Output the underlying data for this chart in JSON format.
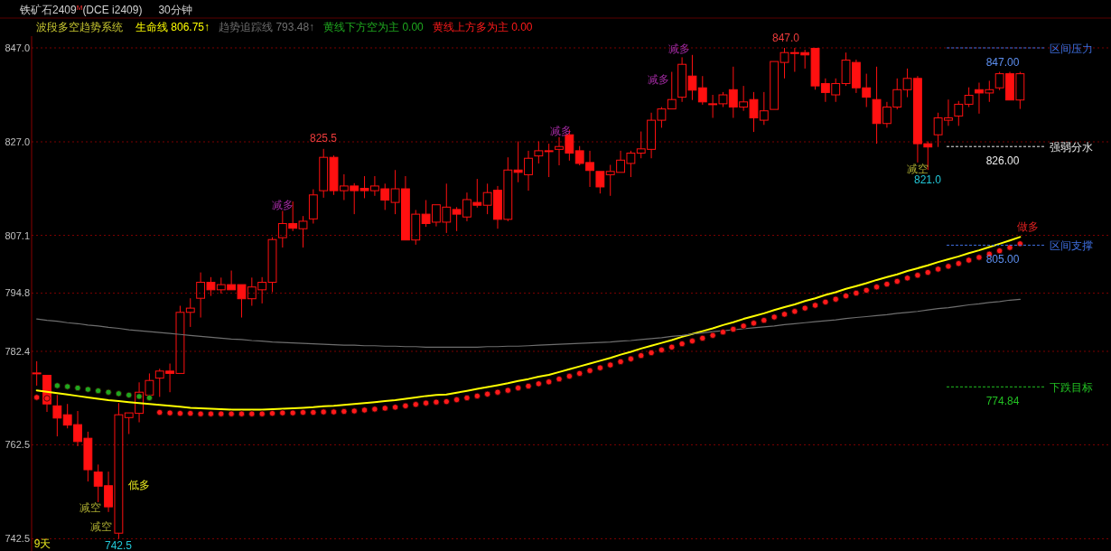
{
  "chart_data": {
    "type": "candlestick",
    "title": "铁矿石2409$^{M}$(DCE i2409)",
    "subtitle": "30分钟",
    "legend_title": "波段多空趋势系统",
    "legend": "top",
    "grid": "y",
    "color": "#ff1010",
    "ylim": [
      739.9,
      849.5
    ],
    "yticks": [
      {
        "value": 847.0,
        "label": "847.0"
      },
      {
        "value": 827.0,
        "label": "827.0"
      },
      {
        "value": 807.1,
        "label": "807.1"
      },
      {
        "value": 794.8,
        "label": "794.8"
      },
      {
        "value": 782.4,
        "label": "782.4"
      },
      {
        "value": 762.5,
        "label": "762.5"
      },
      {
        "value": 742.5,
        "label": "742.5"
      }
    ],
    "categories": [
      null,
      null,
      null,
      null,
      null,
      null,
      null,
      null,
      null,
      null,
      null,
      null,
      null,
      null,
      null,
      null,
      null,
      null,
      null,
      null,
      null,
      null,
      null,
      null,
      null,
      null,
      null,
      null,
      null,
      null,
      null,
      null,
      null,
      null,
      null,
      null,
      null,
      null,
      null,
      null,
      null,
      null,
      null,
      null,
      null,
      null,
      null,
      null,
      null,
      null,
      null,
      null,
      null,
      null,
      null,
      null,
      null,
      null,
      null,
      null,
      null,
      null,
      null,
      null,
      null,
      null,
      null,
      null,
      null,
      null,
      null,
      null,
      null,
      null,
      null,
      null,
      null,
      null,
      null,
      null,
      null,
      null,
      null,
      null,
      null,
      null,
      null,
      null,
      null,
      null,
      null,
      null,
      null,
      null,
      null,
      null,
      null
    ],
    "ohlc": [
      [
        777.8,
        780.3,
        775.1,
        777.8
      ],
      [
        777.3,
        777.3,
        769.5,
        771.2
      ],
      [
        770.8,
        773.1,
        764.3,
        768.2
      ],
      [
        768.9,
        771.2,
        766.0,
        766.7
      ],
      [
        766.8,
        769.7,
        762.2,
        763.2
      ],
      [
        763.9,
        765.3,
        754.7,
        757.2
      ],
      [
        756.7,
        758.3,
        750.3,
        753.7
      ],
      [
        753.8,
        756.8,
        748.2,
        749.3
      ],
      [
        743.7,
        771.4,
        742.5,
        768.9
      ],
      [
        768.3,
        769.3,
        764.8,
        769.3
      ],
      [
        769.2,
        775.8,
        767.3,
        773.7
      ],
      [
        773.1,
        777.7,
        773.1,
        776.2
      ],
      [
        776.7,
        778.7,
        772.7,
        778.2
      ],
      [
        778.2,
        779.8,
        773.7,
        777.7
      ],
      [
        777.7,
        792.1,
        777.7,
        790.7
      ],
      [
        790.7,
        793.7,
        787.6,
        791.6
      ],
      [
        793.7,
        799.2,
        789.6,
        797.1
      ],
      [
        797.1,
        798.2,
        794.2,
        795.5
      ],
      [
        795.5,
        798.1,
        794.7,
        796.6
      ],
      [
        796.6,
        799.6,
        795.5,
        795.5
      ],
      [
        796.6,
        796.6,
        789.6,
        793.6
      ],
      [
        793.6,
        798.1,
        792.1,
        796.1
      ],
      [
        795.5,
        798.2,
        792.6,
        797.1
      ],
      [
        797.1,
        806.7,
        795.0,
        806.2
      ],
      [
        806.6,
        812.3,
        804.5,
        809.6
      ],
      [
        809.6,
        814.3,
        808.0,
        808.6
      ],
      [
        808.5,
        811.2,
        804.5,
        810.1
      ],
      [
        810.6,
        816.9,
        809.6,
        815.7
      ],
      [
        816.6,
        825.5,
        815.1,
        823.7
      ],
      [
        823.7,
        824.1,
        815.7,
        816.6
      ],
      [
        816.6,
        820.1,
        814.6,
        817.6
      ],
      [
        817.6,
        818.2,
        811.6,
        816.6
      ],
      [
        817.1,
        819.7,
        815.0,
        816.6
      ],
      [
        816.6,
        819.7,
        815.5,
        817.6
      ],
      [
        817.0,
        818.1,
        812.5,
        814.6
      ],
      [
        814.1,
        821.0,
        811.6,
        817.0
      ],
      [
        817.0,
        819.7,
        806.1,
        806.1
      ],
      [
        806.1,
        812.5,
        805.1,
        811.6
      ],
      [
        811.6,
        814.6,
        808.9,
        809.6
      ],
      [
        809.9,
        813.6,
        809.0,
        813.6
      ],
      [
        809.9,
        818.1,
        807.6,
        813.1
      ],
      [
        812.6,
        813.1,
        808.0,
        811.6
      ],
      [
        811.0,
        816.2,
        810.1,
        814.7
      ],
      [
        814.1,
        819.1,
        813.0,
        813.5
      ],
      [
        813.5,
        818.1,
        811.6,
        816.2
      ],
      [
        816.7,
        817.6,
        808.5,
        810.5
      ],
      [
        810.5,
        823.7,
        810.1,
        821.0
      ],
      [
        821.0,
        827.1,
        818.4,
        820.5
      ],
      [
        820.0,
        825.1,
        816.6,
        823.5
      ],
      [
        824.0,
        827.1,
        822.4,
        825.1
      ],
      [
        825.1,
        826.6,
        819.5,
        825.1
      ],
      [
        825.4,
        828.0,
        822.0,
        826.0
      ],
      [
        828.5,
        829.6,
        823.0,
        824.6
      ],
      [
        825.1,
        826.1,
        822.0,
        822.4
      ],
      [
        822.6,
        825.1,
        817.4,
        820.9
      ],
      [
        820.7,
        820.7,
        816.0,
        817.4
      ],
      [
        820.0,
        822.1,
        815.5,
        820.7
      ],
      [
        820.5,
        825.1,
        820.5,
        823.1
      ],
      [
        822.4,
        825.1,
        819.5,
        824.6
      ],
      [
        824.6,
        829.2,
        823.5,
        825.5
      ],
      [
        825.4,
        833.2,
        823.5,
        831.6
      ],
      [
        831.6,
        834.4,
        830.0,
        834.0
      ],
      [
        834.0,
        841.9,
        834.0,
        836.0
      ],
      [
        836.5,
        845.0,
        835.5,
        843.5
      ],
      [
        841.0,
        845.5,
        835.9,
        838.0
      ],
      [
        838.5,
        841.0,
        834.9,
        835.5
      ],
      [
        835.1,
        837.0,
        832.1,
        835.1
      ],
      [
        835.1,
        837.6,
        834.4,
        837.0
      ],
      [
        838.1,
        843.0,
        832.1,
        834.4
      ],
      [
        834.4,
        838.9,
        833.6,
        835.5
      ],
      [
        836.0,
        837.6,
        829.1,
        832.1
      ],
      [
        831.6,
        837.6,
        830.6,
        833.6
      ],
      [
        833.9,
        844.1,
        833.9,
        844.1
      ],
      [
        843.9,
        847.0,
        840.5,
        846.0
      ],
      [
        846.0,
        847.0,
        841.9,
        846.0
      ],
      [
        846.0,
        846.6,
        842.6,
        845.5
      ],
      [
        846.9,
        846.9,
        838.1,
        838.9
      ],
      [
        839.4,
        840.5,
        835.5,
        837.5
      ],
      [
        837.0,
        840.5,
        835.5,
        839.4
      ],
      [
        839.4,
        846.0,
        838.9,
        844.4
      ],
      [
        843.9,
        844.5,
        837.4,
        838.5
      ],
      [
        838.5,
        841.5,
        834.4,
        836.5
      ],
      [
        836.0,
        843.0,
        826.6,
        830.9
      ],
      [
        830.9,
        835.5,
        830.0,
        834.4
      ],
      [
        834.4,
        840.5,
        833.9,
        838.1
      ],
      [
        838.1,
        842.6,
        836.5,
        840.5
      ],
      [
        840.5,
        841.0,
        822.6,
        826.6
      ],
      [
        826.6,
        827.1,
        821.0,
        825.9
      ],
      [
        828.5,
        833.2,
        825.9,
        832.1
      ],
      [
        831.6,
        836.0,
        830.4,
        832.1
      ],
      [
        832.5,
        835.7,
        830.4,
        835.0
      ],
      [
        835.0,
        838.6,
        834.4,
        836.9
      ],
      [
        838.1,
        839.6,
        833.0,
        837.4
      ],
      [
        837.4,
        840.0,
        835.5,
        838.1
      ],
      [
        838.5,
        841.9,
        838.0,
        841.5
      ],
      [
        841.5,
        841.9,
        835.9,
        835.9
      ],
      [
        835.9,
        841.9,
        834.0,
        841.5
      ]
    ],
    "series": [
      {
        "name": "生命线 806.75↑",
        "type": "line",
        "color": "#ffff00",
        "values": [
          774.1,
          773.8,
          773.5,
          773.2,
          772.9,
          772.6,
          772.3,
          772.0,
          771.8,
          771.6,
          771.4,
          771.2,
          771.0,
          770.8,
          770.6,
          770.4,
          770.3,
          770.2,
          770.1,
          770.0,
          770.0,
          770.0,
          770.0,
          770.1,
          770.2,
          770.3,
          770.4,
          770.5,
          770.7,
          770.8,
          771.0,
          771.2,
          771.4,
          771.6,
          771.8,
          772.0,
          772.3,
          772.6,
          772.9,
          773.1,
          773.2,
          773.6,
          774.0,
          774.4,
          774.8,
          775.2,
          775.6,
          776.1,
          776.5,
          777.0,
          777.4,
          778.0,
          778.6,
          779.2,
          779.8,
          780.4,
          781.0,
          781.7,
          782.3,
          783.0,
          783.6,
          784.2,
          784.8,
          785.5,
          786.1,
          786.7,
          787.3,
          788.0,
          788.6,
          789.3,
          789.9,
          790.5,
          791.2,
          791.8,
          792.4,
          793.1,
          793.7,
          794.4,
          795.0,
          795.7,
          796.3,
          796.9,
          797.6,
          798.2,
          798.8,
          799.5,
          800.1,
          800.7,
          801.4,
          802.0,
          802.6,
          803.3,
          803.9,
          804.6,
          805.3,
          806.0,
          806.75
        ]
      },
      {
        "name": "趋势追踪线 793.48↑",
        "type": "line",
        "color": "#6e6e6e",
        "values": [
          789.3,
          789.0,
          788.8,
          788.5,
          788.3,
          788.0,
          787.8,
          787.5,
          787.3,
          787.0,
          786.8,
          786.6,
          786.4,
          786.2,
          786.0,
          785.8,
          785.6,
          785.4,
          785.2,
          785.0,
          784.9,
          784.7,
          784.6,
          784.4,
          784.3,
          784.2,
          784.1,
          784.0,
          783.9,
          783.8,
          783.7,
          783.7,
          783.6,
          783.6,
          783.5,
          783.5,
          783.4,
          783.4,
          783.3,
          783.3,
          783.3,
          783.3,
          783.3,
          783.3,
          783.4,
          783.4,
          783.5,
          783.5,
          783.6,
          783.7,
          783.8,
          783.9,
          784.0,
          784.1,
          784.2,
          784.3,
          784.4,
          784.6,
          784.7,
          784.9,
          785.1,
          785.3,
          785.6,
          785.8,
          786.1,
          786.3,
          786.6,
          786.8,
          787.0,
          787.2,
          787.4,
          787.6,
          787.8,
          788.1,
          788.3,
          788.5,
          788.7,
          788.9,
          789.1,
          789.4,
          789.6,
          789.8,
          790.0,
          790.2,
          790.5,
          790.7,
          790.9,
          791.2,
          791.5,
          791.7,
          792.0,
          792.3,
          792.5,
          792.8,
          793.0,
          793.3,
          793.48
        ]
      },
      {
        "name": "黄线下方空为主 0.00",
        "type": "scatter",
        "color": "#1fa81f",
        "values": [
          null,
          null,
          775.1,
          774.9,
          774.6,
          774.3,
          774.0,
          773.7,
          773.4,
          773.1,
          772.8,
          772.5,
          null,
          null,
          null,
          null,
          null,
          null,
          null,
          null,
          null,
          null,
          null,
          null,
          null,
          null,
          null,
          null,
          null,
          null,
          null,
          null,
          null,
          null,
          null,
          null,
          null,
          null,
          null,
          null,
          null,
          null,
          null,
          null,
          null,
          null,
          null,
          null,
          null,
          null,
          null,
          null,
          null,
          null,
          null,
          null,
          null,
          null,
          null,
          null,
          null,
          null,
          null,
          null,
          null,
          null,
          null,
          null,
          null,
          null,
          null,
          null,
          null,
          null,
          null,
          null,
          null,
          null,
          null,
          null,
          null,
          null,
          null,
          null,
          null,
          null,
          null,
          null,
          null,
          null,
          null,
          null,
          null,
          null,
          null,
          null,
          null
        ]
      },
      {
        "name": "黄线上方多为主 0.00",
        "type": "scatter",
        "color": "#ff1a1a",
        "values": [
          772.6,
          772.4,
          null,
          null,
          null,
          null,
          null,
          null,
          null,
          null,
          null,
          null,
          769.4,
          769.3,
          769.2,
          769.2,
          769.1,
          769.1,
          769.1,
          769.1,
          769.1,
          769.1,
          769.1,
          769.2,
          769.3,
          769.3,
          769.4,
          769.4,
          769.5,
          769.5,
          769.6,
          769.7,
          769.9,
          770.1,
          770.3,
          770.5,
          770.8,
          771.1,
          771.4,
          771.6,
          771.7,
          772.1,
          772.5,
          772.9,
          773.3,
          773.7,
          774.1,
          774.6,
          775.0,
          775.5,
          775.9,
          776.5,
          777.1,
          777.7,
          778.3,
          778.9,
          779.5,
          780.2,
          780.8,
          781.5,
          782.1,
          782.7,
          783.3,
          784.0,
          784.6,
          785.2,
          785.8,
          786.5,
          787.1,
          787.8,
          788.4,
          789.0,
          789.7,
          790.3,
          790.9,
          791.6,
          792.2,
          792.9,
          793.5,
          794.2,
          794.8,
          795.4,
          796.1,
          796.7,
          797.3,
          798.0,
          798.6,
          799.2,
          799.9,
          800.5,
          801.1,
          801.8,
          802.4,
          803.1,
          803.8,
          804.5,
          805.3
        ]
      }
    ],
    "ref_lines": [
      {
        "axis": "y",
        "value": 847.0,
        "label": "区间压力",
        "color": "#3f6fe0",
        "line_style": "dashed"
      },
      {
        "axis": "y",
        "value": 826.0,
        "label": "强弱分水",
        "color": "#e8e8e8",
        "line_style": "dashed"
      },
      {
        "axis": "y",
        "value": 805.0,
        "label": "区间支撑",
        "color": "#3f6fe0",
        "line_style": "dashed"
      },
      {
        "axis": "y",
        "value": 774.84,
        "label": "下跌目标",
        "color": "#22c022",
        "line_style": "dashed"
      }
    ],
    "annotations": [
      {
        "text": "825.5",
        "y": 825.5
      },
      {
        "text": "847.0",
        "y": 847.0
      },
      {
        "text": "742.5",
        "y": 742.5
      },
      {
        "text": "821.0",
        "y": 821.0
      },
      {
        "text": "847.00",
        "y": 847.0
      },
      {
        "text": "826.00",
        "y": 826.0
      },
      {
        "text": "805.00",
        "y": 805.0
      },
      {
        "text": "774.84",
        "y": 774.84
      },
      "减多",
      "减多",
      "减多",
      "减多",
      "减空",
      "减空",
      "减空",
      "低多",
      "做多",
      "9天"
    ]
  }
}
